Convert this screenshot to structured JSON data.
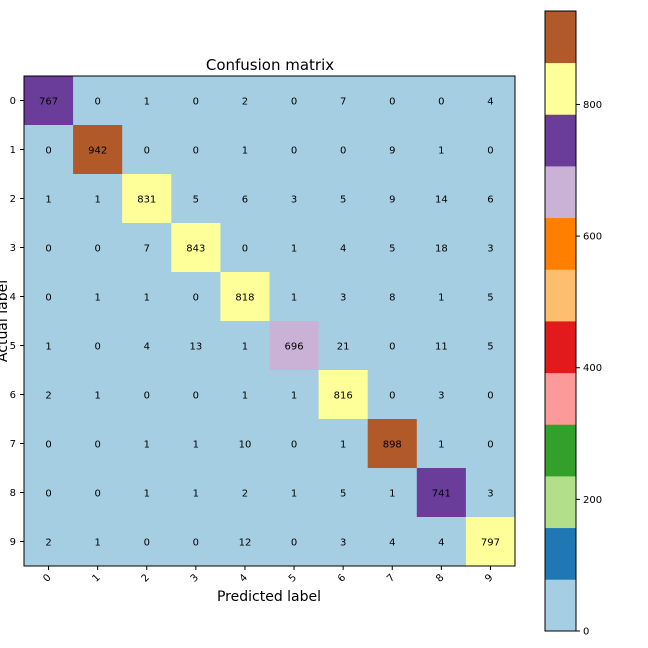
{
  "chart_data": {
    "type": "heatmap",
    "title": "Confusion matrix",
    "xlabel": "Predicted label",
    "ylabel": "Actual label",
    "x_ticks": [
      "0",
      "1",
      "2",
      "3",
      "4",
      "5",
      "6",
      "7",
      "8",
      "9"
    ],
    "y_ticks": [
      "0",
      "1",
      "2",
      "3",
      "4",
      "5",
      "6",
      "7",
      "8",
      "9"
    ],
    "matrix": [
      [
        767,
        0,
        1,
        0,
        2,
        0,
        7,
        0,
        0,
        4
      ],
      [
        0,
        942,
        0,
        0,
        1,
        0,
        0,
        9,
        1,
        0
      ],
      [
        1,
        1,
        831,
        5,
        6,
        3,
        5,
        9,
        14,
        6
      ],
      [
        0,
        0,
        7,
        843,
        0,
        1,
        4,
        5,
        18,
        3
      ],
      [
        0,
        1,
        1,
        0,
        818,
        1,
        3,
        8,
        1,
        5
      ],
      [
        1,
        0,
        4,
        13,
        1,
        696,
        21,
        0,
        11,
        5
      ],
      [
        2,
        1,
        0,
        0,
        1,
        1,
        816,
        0,
        3,
        0
      ],
      [
        0,
        0,
        1,
        1,
        10,
        0,
        1,
        898,
        1,
        0
      ],
      [
        0,
        0,
        1,
        1,
        2,
        1,
        5,
        1,
        741,
        3
      ],
      [
        2,
        1,
        0,
        0,
        12,
        0,
        3,
        4,
        4,
        797
      ]
    ],
    "colormap": "Paired",
    "colormap_colors": [
      "#a6cee3",
      "#1f78b4",
      "#b2df8a",
      "#33a02c",
      "#fb9a99",
      "#e31a1c",
      "#fdbf6f",
      "#ff7f00",
      "#cab2d6",
      "#6a3d9a",
      "#ffff99",
      "#b15928"
    ],
    "vmin": 0,
    "vmax": 942,
    "colorbar_ticks": [
      0,
      200,
      400,
      600,
      800
    ],
    "grid": false
  }
}
